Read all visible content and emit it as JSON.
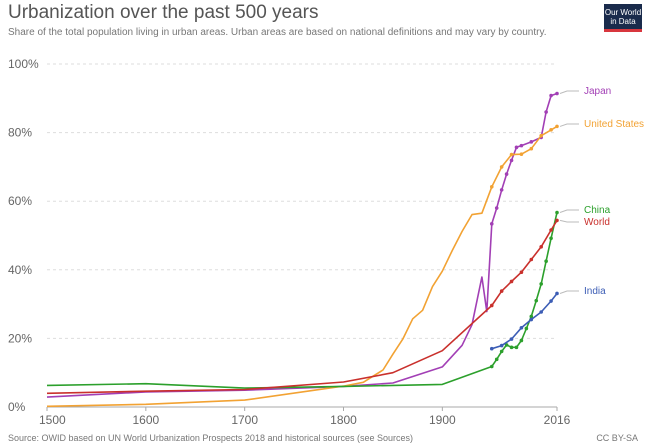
{
  "header": {
    "title": "Urbanization over the past 500 years",
    "subtitle": "Share of the total population living in urban areas. Urban areas are based on national definitions and may vary by country.",
    "logo_line1": "Our World",
    "logo_line2": "in Data"
  },
  "footer": {
    "source": "Source: OWID based on UN World Urbanization Prospects 2018 and historical sources (see Sources)",
    "license": "CC BY-SA"
  },
  "chart_data": {
    "type": "line",
    "title": "Urbanization over the past 500 years",
    "xlim": [
      1500,
      2016
    ],
    "ylim": [
      0,
      100
    ],
    "x_ticks": [
      1500,
      1600,
      1700,
      1800,
      1900,
      2016
    ],
    "y_ticks": [
      0,
      20,
      40,
      60,
      80,
      100
    ],
    "y_tick_labels": [
      "0%",
      "20%",
      "40%",
      "60%",
      "80%",
      "100%"
    ],
    "grid": "horizontal dotted",
    "legend": "labels at right end of lines",
    "series": [
      {
        "name": "Japan",
        "color": "#a23fb5",
        "points": [
          [
            1500,
            2.9
          ],
          [
            1600,
            4.4
          ],
          [
            1700,
            4.9
          ],
          [
            1800,
            6.0
          ],
          [
            1850,
            7.0
          ],
          [
            1900,
            11.7
          ],
          [
            1920,
            18.0
          ],
          [
            1930,
            24.0
          ],
          [
            1940,
            37.9
          ],
          [
            1945,
            27.8
          ],
          [
            1950,
            53.4
          ],
          [
            1955,
            58.0
          ],
          [
            1960,
            63.3
          ],
          [
            1965,
            67.9
          ],
          [
            1970,
            71.9
          ],
          [
            1975,
            75.7
          ],
          [
            1980,
            76.2
          ],
          [
            1990,
            77.3
          ],
          [
            2000,
            78.6
          ],
          [
            2005,
            86.0
          ],
          [
            2010,
            90.8
          ],
          [
            2016,
            91.4
          ]
        ]
      },
      {
        "name": "United States",
        "color": "#f2a233",
        "points": [
          [
            1500,
            0.2
          ],
          [
            1600,
            0.8
          ],
          [
            1700,
            2.0
          ],
          [
            1800,
            6.1
          ],
          [
            1820,
            7.2
          ],
          [
            1840,
            10.8
          ],
          [
            1850,
            15.4
          ],
          [
            1860,
            19.8
          ],
          [
            1870,
            25.7
          ],
          [
            1880,
            28.2
          ],
          [
            1890,
            35.1
          ],
          [
            1900,
            39.6
          ],
          [
            1910,
            45.6
          ],
          [
            1920,
            51.2
          ],
          [
            1930,
            56.1
          ],
          [
            1940,
            56.5
          ],
          [
            1950,
            64.2
          ],
          [
            1960,
            70.0
          ],
          [
            1970,
            73.6
          ],
          [
            1980,
            73.7
          ],
          [
            1990,
            75.3
          ],
          [
            2000,
            79.1
          ],
          [
            2010,
            80.8
          ],
          [
            2016,
            81.8
          ]
        ]
      },
      {
        "name": "China",
        "color": "#2ca02c",
        "points": [
          [
            1500,
            6.3
          ],
          [
            1600,
            6.8
          ],
          [
            1700,
            5.5
          ],
          [
            1800,
            6.0
          ],
          [
            1900,
            6.6
          ],
          [
            1950,
            11.8
          ],
          [
            1955,
            13.9
          ],
          [
            1960,
            16.2
          ],
          [
            1965,
            18.1
          ],
          [
            1970,
            17.4
          ],
          [
            1975,
            17.4
          ],
          [
            1980,
            19.4
          ],
          [
            1985,
            22.9
          ],
          [
            1990,
            26.4
          ],
          [
            1995,
            31.0
          ],
          [
            2000,
            35.9
          ],
          [
            2005,
            42.5
          ],
          [
            2010,
            49.2
          ],
          [
            2016,
            56.7
          ]
        ]
      },
      {
        "name": "World",
        "color": "#c9302c",
        "points": [
          [
            1500,
            4.0
          ],
          [
            1600,
            4.6
          ],
          [
            1700,
            5.1
          ],
          [
            1800,
            7.3
          ],
          [
            1850,
            10.0
          ],
          [
            1900,
            16.4
          ],
          [
            1950,
            29.6
          ],
          [
            1960,
            33.8
          ],
          [
            1970,
            36.6
          ],
          [
            1980,
            39.3
          ],
          [
            1990,
            43.0
          ],
          [
            2000,
            46.7
          ],
          [
            2010,
            51.6
          ],
          [
            2016,
            54.4
          ]
        ]
      },
      {
        "name": "India",
        "color": "#3c5db5",
        "points": [
          [
            1950,
            17.0
          ],
          [
            1960,
            17.9
          ],
          [
            1970,
            19.8
          ],
          [
            1980,
            23.1
          ],
          [
            1990,
            25.5
          ],
          [
            2000,
            27.7
          ],
          [
            2010,
            30.9
          ],
          [
            2016,
            33.1
          ]
        ]
      }
    ]
  }
}
